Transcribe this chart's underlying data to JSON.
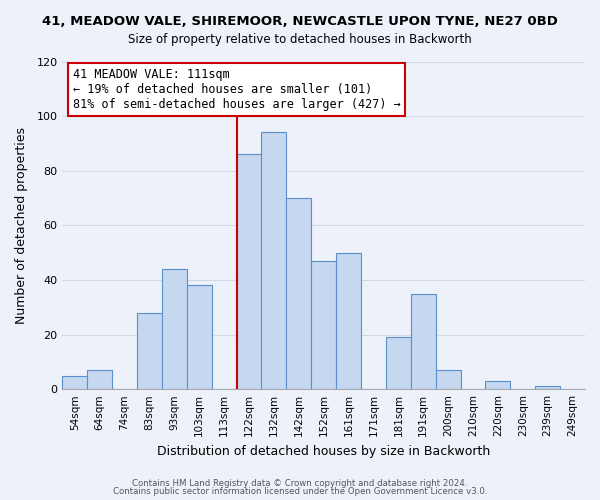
{
  "title_line1": "41, MEADOW VALE, SHIREMOOR, NEWCASTLE UPON TYNE, NE27 0BD",
  "title_line2": "Size of property relative to detached houses in Backworth",
  "xlabel": "Distribution of detached houses by size in Backworth",
  "ylabel": "Number of detached properties",
  "bin_labels": [
    "54sqm",
    "64sqm",
    "74sqm",
    "83sqm",
    "93sqm",
    "103sqm",
    "113sqm",
    "122sqm",
    "132sqm",
    "142sqm",
    "152sqm",
    "161sqm",
    "171sqm",
    "181sqm",
    "191sqm",
    "200sqm",
    "210sqm",
    "220sqm",
    "230sqm",
    "239sqm",
    "249sqm"
  ],
  "bar_heights": [
    5,
    7,
    0,
    28,
    44,
    38,
    0,
    86,
    94,
    70,
    47,
    50,
    0,
    19,
    35,
    7,
    0,
    3,
    0,
    1,
    0
  ],
  "bar_color": "#c5d8f0",
  "bar_edge_color": "#5b8fc9",
  "vline_x_index": 7,
  "vline_color": "#cc0000",
  "annotation_title": "41 MEADOW VALE: 111sqm",
  "annotation_line2": "← 19% of detached houses are smaller (101)",
  "annotation_line3": "81% of semi-detached houses are larger (427) →",
  "annotation_box_edge": "#cc0000",
  "ylim": [
    0,
    120
  ],
  "yticks": [
    0,
    20,
    40,
    60,
    80,
    100,
    120
  ],
  "footer_line1": "Contains HM Land Registry data © Crown copyright and database right 2024.",
  "footer_line2": "Contains public sector information licensed under the Open Government Licence v3.0.",
  "background_color": "#edf2fa",
  "grid_color": "#d0d8e8"
}
